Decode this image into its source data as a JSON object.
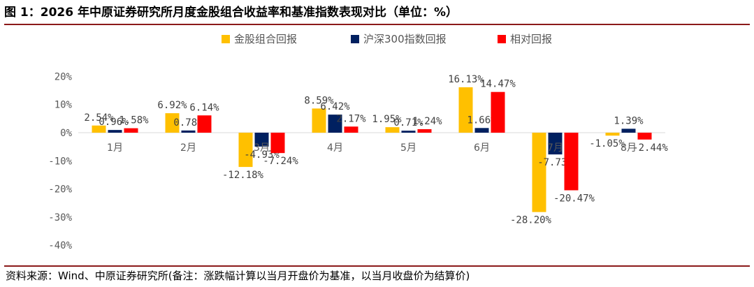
{
  "header": {
    "title": "图 1：2026 年中原证券研究所月度金股组合收益率和基准指数表现对比（单位：%）"
  },
  "footer": {
    "source": "资料来源：Wind、中原证券研究所(备注：涨跌幅计算以当月开盘价为基准，以当月收盘价为结算价)"
  },
  "chart_data": {
    "type": "bar",
    "categories": [
      "1月",
      "2月",
      "3月",
      "4月",
      "5月",
      "6月",
      "7月",
      "8月"
    ],
    "series": [
      {
        "name": "金股组合回报",
        "color": "#FFC000",
        "values": [
          2.54,
          6.92,
          -12.18,
          8.59,
          1.95,
          16.13,
          -28.2,
          -1.05
        ]
      },
      {
        "name": "沪深300指数回报",
        "color": "#002060",
        "values": [
          0.96,
          0.78,
          -4.93,
          6.42,
          0.71,
          1.66,
          -7.73,
          1.39
        ]
      },
      {
        "name": "相对回报",
        "color": "#FF0000",
        "values": [
          1.58,
          6.14,
          -7.24,
          2.17,
          1.24,
          14.47,
          -20.47,
          -2.44
        ]
      }
    ],
    "y_ticks": [
      "20%",
      "10%",
      "0%",
      "-10%",
      "-20%",
      "-30%",
      "-40%"
    ],
    "ylim": [
      -40,
      20
    ],
    "xlabel": "",
    "ylabel": "",
    "legend_position": "top-center",
    "grid": false
  }
}
